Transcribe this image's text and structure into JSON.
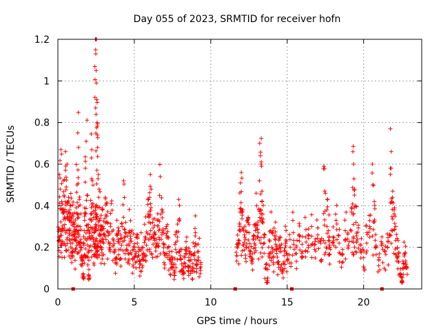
{
  "chart_data": {
    "type": "scatter",
    "title": "Day 055 of 2023, SRMTID for receiver hofn",
    "xlabel": "GPS time / hours",
    "ylabel": "SRMTID / TECUs",
    "xlim": [
      0,
      23.8
    ],
    "ylim": [
      0,
      1.2
    ],
    "xticks": [
      0,
      5,
      10,
      15,
      20
    ],
    "yticks": [
      0,
      0.2,
      0.4,
      0.6,
      0.8,
      1,
      1.2
    ],
    "xtick_labels": [
      "0",
      "5",
      "10",
      "15",
      "20"
    ],
    "ytick_labels": [
      "0",
      "0.2",
      "0.4",
      "0.6",
      "0.8",
      "1",
      "1.2"
    ],
    "grid": true,
    "marker": "+",
    "color": "#ff0000",
    "series": [
      {
        "name": "SRMTID",
        "description_segments": "dense clusters of points 0-9.3 h and 11.6-22.8 h; gap 9.3-11.6 h",
        "points": [
          [
            0.05,
            0.23
          ],
          [
            0.1,
            0.55
          ],
          [
            0.15,
            0.48
          ],
          [
            0.2,
            0.67
          ],
          [
            0.25,
            0.42
          ],
          [
            0.3,
            0.38
          ],
          [
            0.35,
            0.52
          ],
          [
            0.4,
            0.45
          ],
          [
            0.45,
            0.31
          ],
          [
            0.5,
            0.57
          ],
          [
            0.55,
            0.49
          ],
          [
            0.6,
            0.6
          ],
          [
            0.65,
            0.36
          ],
          [
            0.7,
            0.44
          ],
          [
            0.75,
            0.33
          ],
          [
            0.8,
            0.28
          ],
          [
            0.85,
            0.4
          ],
          [
            0.9,
            0.26
          ],
          [
            0.95,
            0.22
          ],
          [
            1.0,
            0.35
          ],
          [
            1.05,
            0.31
          ],
          [
            1.1,
            0.25
          ],
          [
            1.15,
            0.19
          ],
          [
            1.2,
            0.39
          ],
          [
            1.25,
            0.5
          ],
          [
            1.3,
            0.75
          ],
          [
            1.35,
            0.68
          ],
          [
            1.4,
            0.43
          ],
          [
            1.45,
            0.3
          ],
          [
            1.5,
            0.22
          ],
          [
            1.55,
            0.16
          ],
          [
            1.6,
            0.12
          ],
          [
            1.65,
            0.07
          ],
          [
            1.7,
            0.21
          ],
          [
            1.75,
            0.33
          ],
          [
            1.8,
            0.58
          ],
          [
            1.85,
            0.71
          ],
          [
            1.9,
            0.45
          ],
          [
            1.95,
            0.28
          ],
          [
            2.0,
            0.18
          ],
          [
            2.05,
            0.06
          ],
          [
            2.1,
            0.24
          ],
          [
            2.15,
            0.36
          ],
          [
            2.2,
            0.63
          ],
          [
            2.25,
            0.52
          ],
          [
            2.3,
            0.41
          ],
          [
            2.35,
            0.27
          ],
          [
            2.4,
            0.2
          ],
          [
            2.45,
            1.2
          ],
          [
            2.47,
            1.15
          ],
          [
            2.48,
            1.13
          ],
          [
            2.5,
            1.05
          ],
          [
            2.52,
            0.99
          ],
          [
            2.54,
            0.91
          ],
          [
            2.56,
            0.8
          ],
          [
            2.58,
            0.74
          ],
          [
            2.6,
            0.68
          ],
          [
            2.65,
            0.55
          ],
          [
            2.7,
            0.48
          ],
          [
            2.75,
            0.33
          ],
          [
            2.8,
            0.26
          ],
          [
            2.85,
            0.19
          ],
          [
            2.9,
            0.38
          ],
          [
            2.95,
            0.3
          ],
          [
            3.0,
            0.22
          ],
          [
            3.1,
            0.44
          ],
          [
            3.2,
            0.35
          ],
          [
            3.3,
            0.27
          ],
          [
            3.4,
            0.2
          ],
          [
            3.5,
            0.41
          ],
          [
            3.6,
            0.24
          ],
          [
            3.7,
            0.18
          ],
          [
            3.8,
            0.15
          ],
          [
            3.9,
            0.26
          ],
          [
            4.0,
            0.22
          ],
          [
            4.1,
            0.19
          ],
          [
            4.2,
            0.3
          ],
          [
            4.3,
            0.52
          ],
          [
            4.4,
            0.25
          ],
          [
            4.5,
            0.21
          ],
          [
            4.6,
            0.17
          ],
          [
            4.7,
            0.28
          ],
          [
            4.8,
            0.23
          ],
          [
            4.9,
            0.14
          ],
          [
            5.0,
            0.2
          ],
          [
            5.1,
            0.18
          ],
          [
            5.2,
            0.22
          ],
          [
            5.3,
            0.16
          ],
          [
            5.4,
            0.12
          ],
          [
            5.5,
            0.2
          ],
          [
            5.6,
            0.17
          ],
          [
            5.7,
            0.25
          ],
          [
            5.8,
            0.21
          ],
          [
            5.9,
            0.36
          ],
          [
            6.0,
            0.44
          ],
          [
            6.05,
            0.55
          ],
          [
            6.1,
            0.48
          ],
          [
            6.2,
            0.32
          ],
          [
            6.3,
            0.26
          ],
          [
            6.4,
            0.2
          ],
          [
            6.5,
            0.33
          ],
          [
            6.6,
            0.28
          ],
          [
            6.7,
            0.54
          ],
          [
            6.8,
            0.38
          ],
          [
            6.9,
            0.22
          ],
          [
            7.0,
            0.16
          ],
          [
            7.1,
            0.3
          ],
          [
            7.2,
            0.25
          ],
          [
            7.3,
            0.18
          ],
          [
            7.4,
            0.12
          ],
          [
            7.5,
            0.14
          ],
          [
            7.6,
            0.09
          ],
          [
            7.7,
            0.19
          ],
          [
            7.8,
            0.23
          ],
          [
            7.9,
            0.43
          ],
          [
            8.0,
            0.16
          ],
          [
            8.1,
            0.12
          ],
          [
            8.2,
            0.08
          ],
          [
            8.3,
            0.15
          ],
          [
            8.4,
            0.2
          ],
          [
            8.5,
            0.11
          ],
          [
            8.6,
            0.17
          ],
          [
            8.7,
            0.14
          ],
          [
            8.8,
            0.09
          ],
          [
            8.9,
            0.16
          ],
          [
            9.0,
            0.27
          ],
          [
            9.1,
            0.12
          ],
          [
            9.2,
            0.18
          ],
          [
            9.3,
            0.1
          ],
          [
            11.7,
            0.16
          ],
          [
            11.8,
            0.22
          ],
          [
            11.9,
            0.3
          ],
          [
            11.95,
            0.51
          ],
          [
            12.0,
            0.56
          ],
          [
            12.1,
            0.38
          ],
          [
            12.2,
            0.26
          ],
          [
            12.3,
            0.2
          ],
          [
            12.4,
            0.33
          ],
          [
            12.5,
            0.27
          ],
          [
            12.6,
            0.18
          ],
          [
            12.7,
            0.13
          ],
          [
            12.8,
            0.24
          ],
          [
            12.9,
            0.31
          ],
          [
            13.0,
            0.4
          ],
          [
            13.1,
            0.27
          ],
          [
            13.2,
            0.7
          ],
          [
            13.25,
            0.64
          ],
          [
            13.3,
            0.6
          ],
          [
            13.35,
            0.47
          ],
          [
            13.4,
            0.36
          ],
          [
            13.5,
            0.22
          ],
          [
            13.6,
            0.1
          ],
          [
            13.7,
            0.04
          ],
          [
            13.8,
            0.17
          ],
          [
            13.9,
            0.28
          ],
          [
            14.0,
            0.2
          ],
          [
            14.1,
            0.15
          ],
          [
            14.2,
            0.24
          ],
          [
            14.3,
            0.19
          ],
          [
            14.4,
            0.13
          ],
          [
            14.5,
            0.21
          ],
          [
            14.6,
            0.18
          ],
          [
            14.7,
            0.09
          ],
          [
            14.8,
            0.16
          ],
          [
            14.9,
            0.22
          ],
          [
            15.0,
            0.14
          ],
          [
            15.2,
            0.2
          ],
          [
            15.4,
            0.27
          ],
          [
            15.6,
            0.17
          ],
          [
            15.8,
            0.23
          ],
          [
            16.0,
            0.18
          ],
          [
            16.2,
            0.25
          ],
          [
            16.4,
            0.21
          ],
          [
            16.6,
            0.3
          ],
          [
            16.8,
            0.19
          ],
          [
            17.0,
            0.26
          ],
          [
            17.2,
            0.22
          ],
          [
            17.4,
            0.59
          ],
          [
            17.5,
            0.46
          ],
          [
            17.6,
            0.38
          ],
          [
            17.7,
            0.28
          ],
          [
            17.8,
            0.2
          ],
          [
            18.0,
            0.25
          ],
          [
            18.2,
            0.33
          ],
          [
            18.4,
            0.22
          ],
          [
            18.6,
            0.17
          ],
          [
            18.8,
            0.28
          ],
          [
            19.0,
            0.21
          ],
          [
            19.2,
            0.37
          ],
          [
            19.3,
            0.66
          ],
          [
            19.35,
            0.6
          ],
          [
            19.4,
            0.48
          ],
          [
            19.5,
            0.32
          ],
          [
            19.6,
            0.24
          ],
          [
            19.8,
            0.18
          ],
          [
            20.0,
            0.15
          ],
          [
            20.2,
            0.22
          ],
          [
            20.4,
            0.3
          ],
          [
            20.6,
            0.5
          ],
          [
            20.7,
            0.42
          ],
          [
            20.8,
            0.2
          ],
          [
            21.0,
            0.14
          ],
          [
            21.2,
            0.25
          ],
          [
            21.4,
            0.18
          ],
          [
            21.6,
            0.23
          ],
          [
            21.75,
            0.77
          ],
          [
            21.8,
            0.58
          ],
          [
            21.9,
            0.47
          ],
          [
            22.0,
            0.38
          ],
          [
            22.1,
            0.3
          ],
          [
            22.2,
            0.2
          ],
          [
            22.3,
            0.13
          ],
          [
            22.4,
            0.07
          ],
          [
            22.5,
            0.04
          ],
          [
            22.6,
            0.12
          ],
          [
            22.7,
            0.17
          ],
          [
            22.8,
            0.1
          ]
        ]
      }
    ],
    "markers_on_x_axis": [
      1.0,
      11.6,
      15.3,
      21.2
    ]
  }
}
